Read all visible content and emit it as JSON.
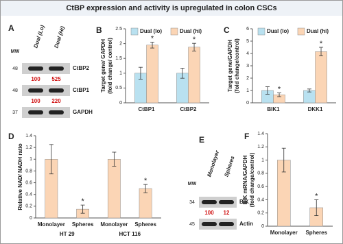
{
  "figure_title": "CtBP expression and activity is upregulated in colon CSCs",
  "blots": [
    {
      "panel": "A",
      "mw_label": "MW",
      "lanes": [
        "Dual (Lo)",
        "Dual (Hi)"
      ],
      "rows": [
        {
          "mw": 48,
          "name": "CtBP2",
          "quant": [
            100,
            525
          ]
        },
        {
          "mw": 48,
          "name": "CtBP1",
          "quant": [
            100,
            220
          ]
        },
        {
          "mw": 37,
          "name": "GAPDH"
        }
      ]
    },
    {
      "panel": "E",
      "mw_label": "MW",
      "lanes": [
        "Monolayer",
        "Spheres"
      ],
      "rows": [
        {
          "mw": 34,
          "name": "BIK",
          "quant": [
            100,
            12
          ]
        },
        {
          "mw": 45,
          "name": "Actin"
        }
      ]
    }
  ],
  "chart_data": [
    {
      "type": "bar",
      "panel": "B",
      "ylabel": [
        "Target gene/ GAPDH",
        "(fold change/ control)"
      ],
      "categories": [
        "CtBP1",
        "CtBP2"
      ],
      "series": [
        {
          "name": "Dual (lo)",
          "color": "#b9e1f0",
          "values": [
            1.0,
            1.0
          ],
          "errors": [
            0.2,
            0.17
          ],
          "labels": [
            null,
            null
          ]
        },
        {
          "name": "Dual (hi)",
          "color": "#fbd5b5",
          "values": [
            1.95,
            1.88
          ],
          "errors": [
            0.1,
            0.13
          ],
          "labels": [
            "*",
            "*"
          ]
        }
      ],
      "ylim": [
        0,
        2.5
      ],
      "yticks": [
        0,
        0.5,
        1,
        1.5,
        2,
        2.5
      ]
    },
    {
      "type": "bar",
      "panel": "C",
      "ylabel": [
        "Target gene/GAPDH",
        "(fold change/control)"
      ],
      "categories": [
        "BIK1",
        "DKK1"
      ],
      "series": [
        {
          "name": "Dual (lo)",
          "color": "#b9e1f0",
          "values": [
            1.0,
            1.0
          ],
          "errors": [
            0.3,
            0.12
          ],
          "labels": [
            null,
            null
          ]
        },
        {
          "name": "Dual (hi)",
          "color": "#fbd5b5",
          "values": [
            0.65,
            4.15
          ],
          "errors": [
            0.15,
            0.35
          ],
          "labels": [
            "*",
            "*"
          ]
        }
      ],
      "ylim": [
        0,
        6
      ],
      "yticks": [
        0,
        1,
        2,
        3,
        4,
        5,
        6
      ]
    },
    {
      "type": "bar",
      "panel": "D",
      "ylabel": [
        "Relative NAD/ NADH ratio"
      ],
      "categories": [
        "Monolayer",
        "Spheres",
        "Monolayer",
        "Spheres"
      ],
      "groups": [
        "HT 29",
        "HCT 116"
      ],
      "color": "#fbd5b5",
      "values": [
        1.0,
        0.15,
        1.0,
        0.5
      ],
      "errors": [
        0.25,
        0.07,
        0.12,
        0.07
      ],
      "labels": [
        null,
        "*",
        null,
        "*"
      ],
      "ylim": [
        0,
        1.4
      ],
      "yticks": [
        0,
        0.2,
        0.4,
        0.6,
        0.8,
        1,
        1.2,
        1.4
      ]
    },
    {
      "type": "bar",
      "panel": "F",
      "ylabel": [
        "BIK mRNA/GAPDH",
        "(fold change/control)"
      ],
      "categories": [
        "Monolayer",
        "Spheres"
      ],
      "color": "#fbd5b5",
      "values": [
        1.0,
        0.28
      ],
      "errors": [
        0.18,
        0.12
      ],
      "labels": [
        null,
        "*"
      ],
      "ylim": [
        0,
        1.4
      ],
      "yticks": [
        0,
        0.2,
        0.4,
        0.6,
        0.8,
        1,
        1.2,
        1.4
      ]
    }
  ]
}
